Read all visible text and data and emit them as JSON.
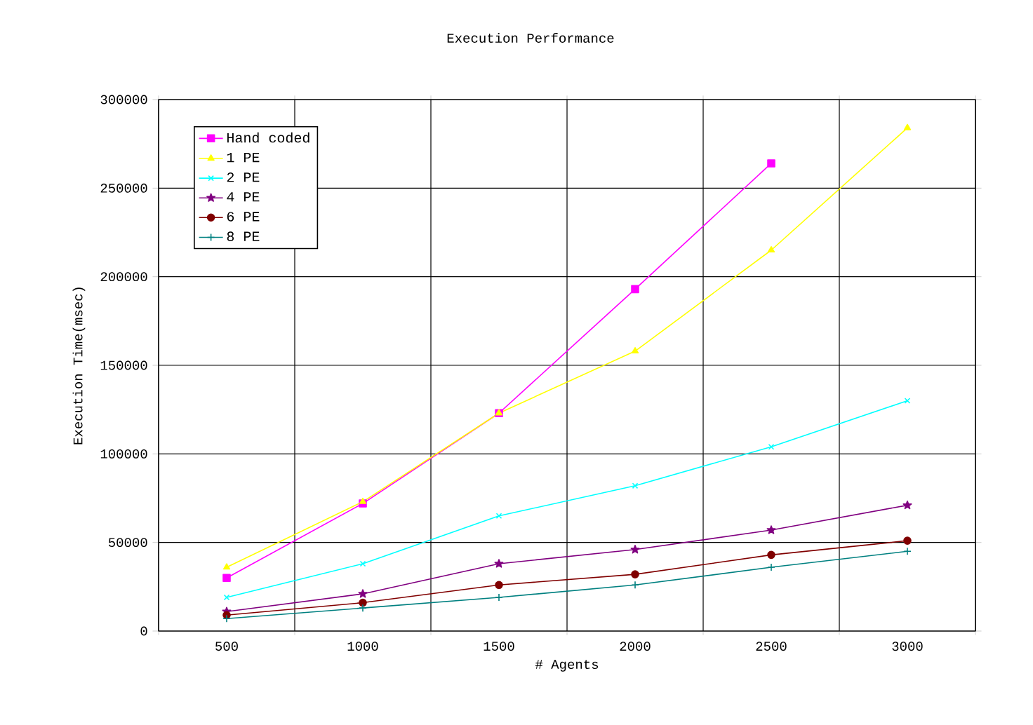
{
  "chart_data": {
    "type": "line",
    "title": "Execution Performance",
    "xlabel": "# Agents",
    "ylabel": "Execution Time(msec)",
    "categories": [
      "500",
      "1000",
      "1500",
      "2000",
      "2500",
      "3000"
    ],
    "ylim": [
      0,
      300000
    ],
    "yticks": [
      0,
      50000,
      100000,
      150000,
      200000,
      250000,
      300000
    ],
    "grid": true,
    "legend": "top left",
    "series": [
      {
        "name": "Hand coded",
        "color": "#ff00ff",
        "marker": "square",
        "values": [
          30000,
          72000,
          123000,
          193000,
          264000,
          null
        ]
      },
      {
        "name": "1 PE",
        "color": "#ffff00",
        "marker": "triangle",
        "values": [
          36000,
          73000,
          123000,
          158000,
          215000,
          284000
        ]
      },
      {
        "name": "2 PE",
        "color": "#00ffff",
        "marker": "cross",
        "values": [
          19000,
          38000,
          65000,
          82000,
          104000,
          130000
        ]
      },
      {
        "name": "4 PE",
        "color": "#800080",
        "marker": "star",
        "values": [
          11000,
          21000,
          38000,
          46000,
          57000,
          71000
        ]
      },
      {
        "name": "6 PE",
        "color": "#800000",
        "marker": "circle",
        "values": [
          9000,
          16000,
          26000,
          32000,
          43000,
          51000
        ]
      },
      {
        "name": "8 PE",
        "color": "#008080",
        "marker": "plus",
        "values": [
          7000,
          13000,
          19000,
          26000,
          36000,
          45000
        ]
      }
    ]
  }
}
